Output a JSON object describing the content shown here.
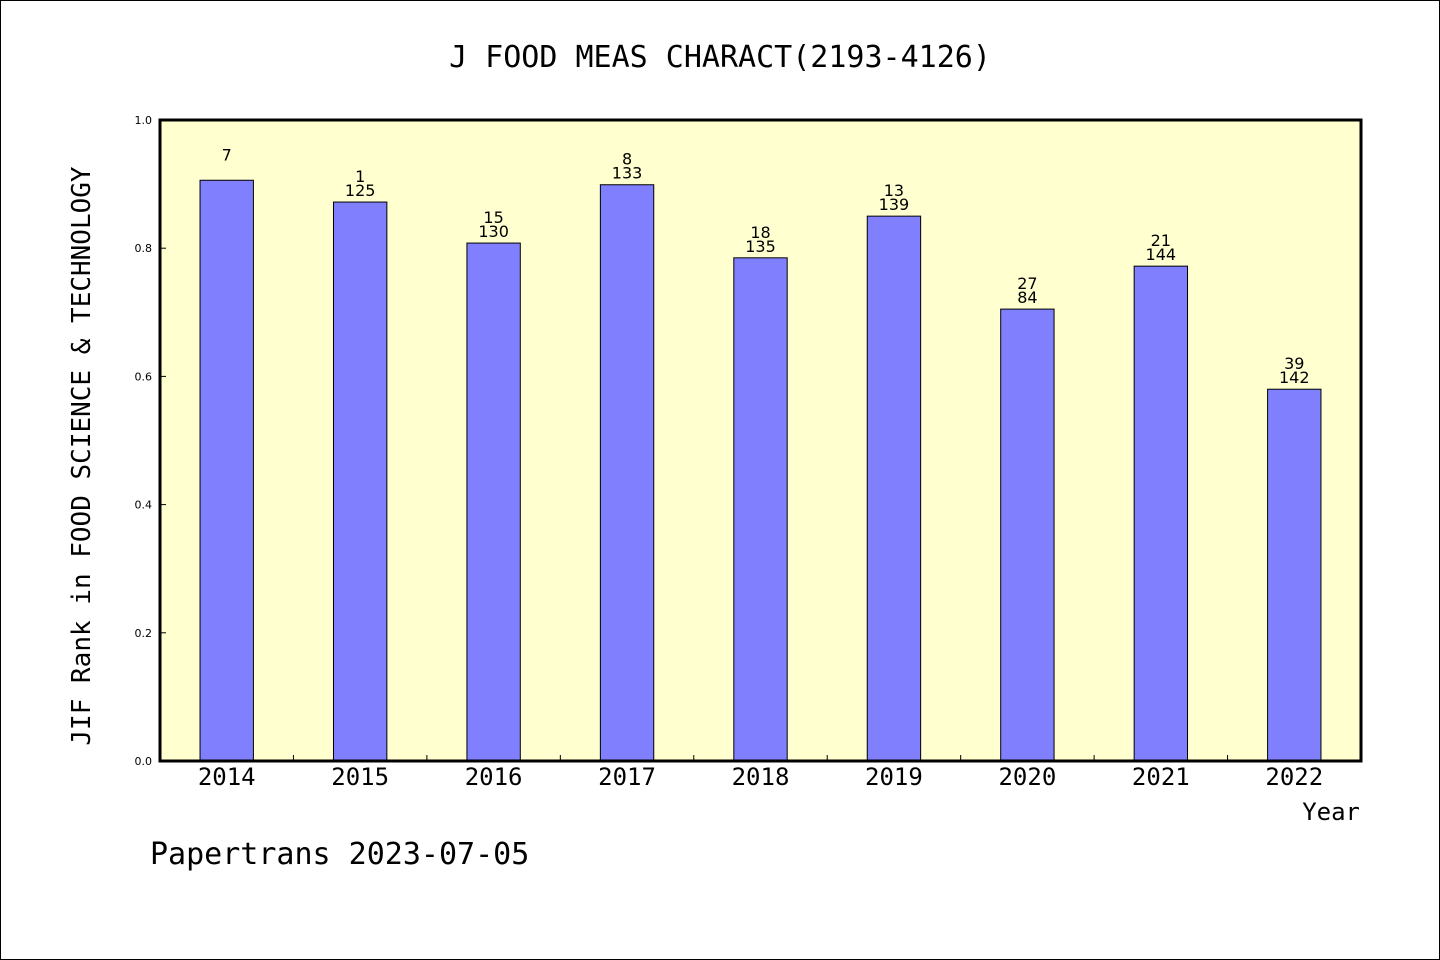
{
  "chart_data": {
    "type": "bar",
    "title": "J FOOD MEAS CHARACT(2193-4126)",
    "xlabel": "Year",
    "ylabel": "JIF Rank in FOOD SCIENCE & TECHNOLOGY",
    "ylim": [
      0,
      1.0
    ],
    "yticks": [
      "0.0",
      "0.2",
      "0.4",
      "0.6",
      "0.8",
      "1.0"
    ],
    "grid": false,
    "legend": "none",
    "categories": [
      "2014",
      "2015",
      "2016",
      "2017",
      "2018",
      "2019",
      "2020",
      "2021",
      "2022"
    ],
    "values": [
      0.906,
      0.872,
      0.808,
      0.899,
      0.785,
      0.85,
      0.705,
      0.772,
      0.58
    ],
    "labels": [
      [
        "7"
      ],
      [
        "1",
        "125"
      ],
      [
        "15",
        "130"
      ],
      [
        "8",
        "133"
      ],
      [
        "18",
        "135"
      ],
      [
        "13",
        "139"
      ],
      [
        "27",
        "84"
      ],
      [
        "21",
        "144"
      ],
      [
        "39",
        "142"
      ]
    ],
    "colors": {
      "plot_background": "#ffffd0",
      "bar_fill": "#8080ff",
      "bar_stroke": "#000000"
    }
  },
  "footer": "Papertrans 2023-07-05"
}
